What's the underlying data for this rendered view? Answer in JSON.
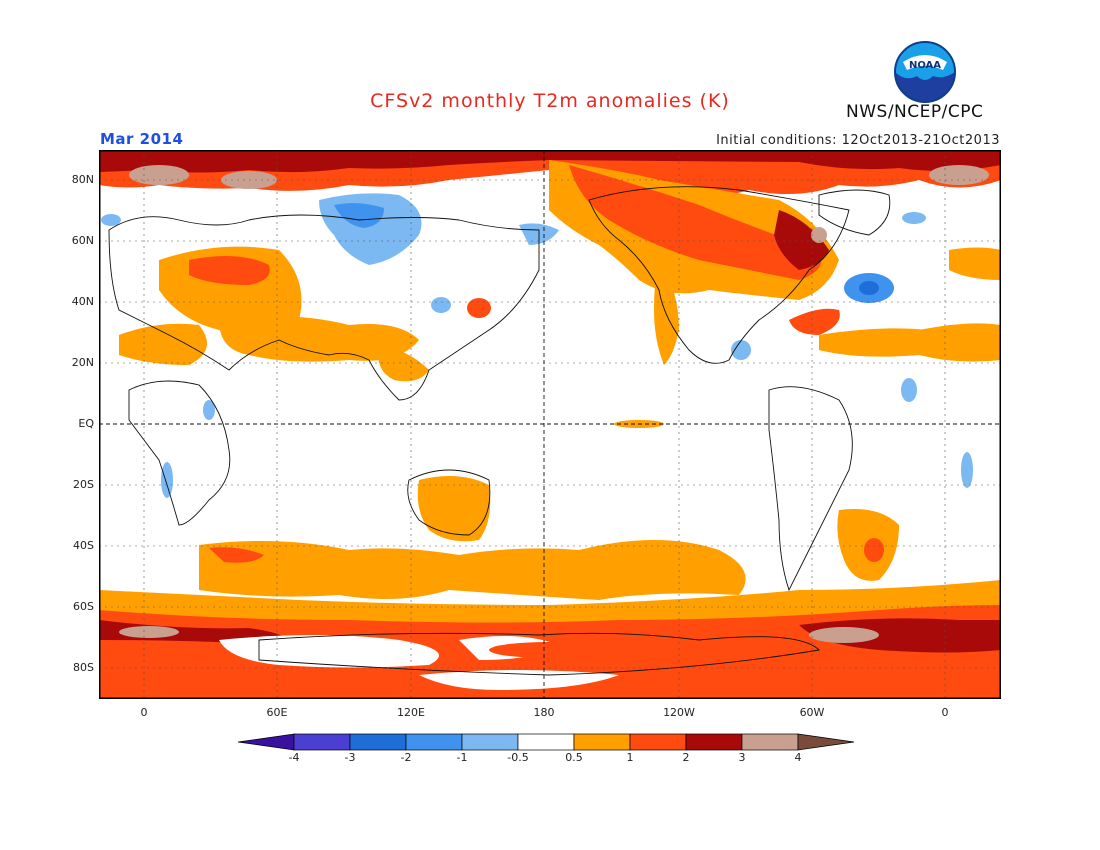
{
  "title": "CFSv2 monthly T2m anomalies (K)",
  "month": "Mar 2014",
  "initial_conditions": "Initial conditions: 12Oct2013-21Oct2013",
  "agency": "NWS/NCEP/CPC",
  "logo_text": "NOAA",
  "axes": {
    "x_ticks": [
      "0",
      "60E",
      "120E",
      "180",
      "120W",
      "60W",
      "0"
    ],
    "y_ticks": [
      "80N",
      "60N",
      "40N",
      "20N",
      "EQ",
      "20S",
      "40S",
      "60S",
      "80S"
    ]
  },
  "colorbar": {
    "labels": [
      "-4",
      "-3",
      "-2",
      "-1",
      "-0.5",
      "0.5",
      "1",
      "2",
      "3",
      "4"
    ],
    "colors": [
      "#3a10a0",
      "#4a3fd0",
      "#1f6ed8",
      "#3f92ee",
      "#7cb9f2",
      "#ffffff",
      "#ffa000",
      "#ff4a10",
      "#a80a0a",
      "#c9a090",
      "#7a4a3a"
    ]
  },
  "colors": {
    "title": "#e8281e",
    "month": "#1e4fe0",
    "warm_1": "#ffa000",
    "warm_2": "#ff4a10",
    "warm_3": "#a80a0a",
    "warm_4": "#c9a090",
    "cool_1": "#7cb9f2",
    "cool_2": "#3f92ee",
    "cool_3": "#1f6ed8"
  }
}
